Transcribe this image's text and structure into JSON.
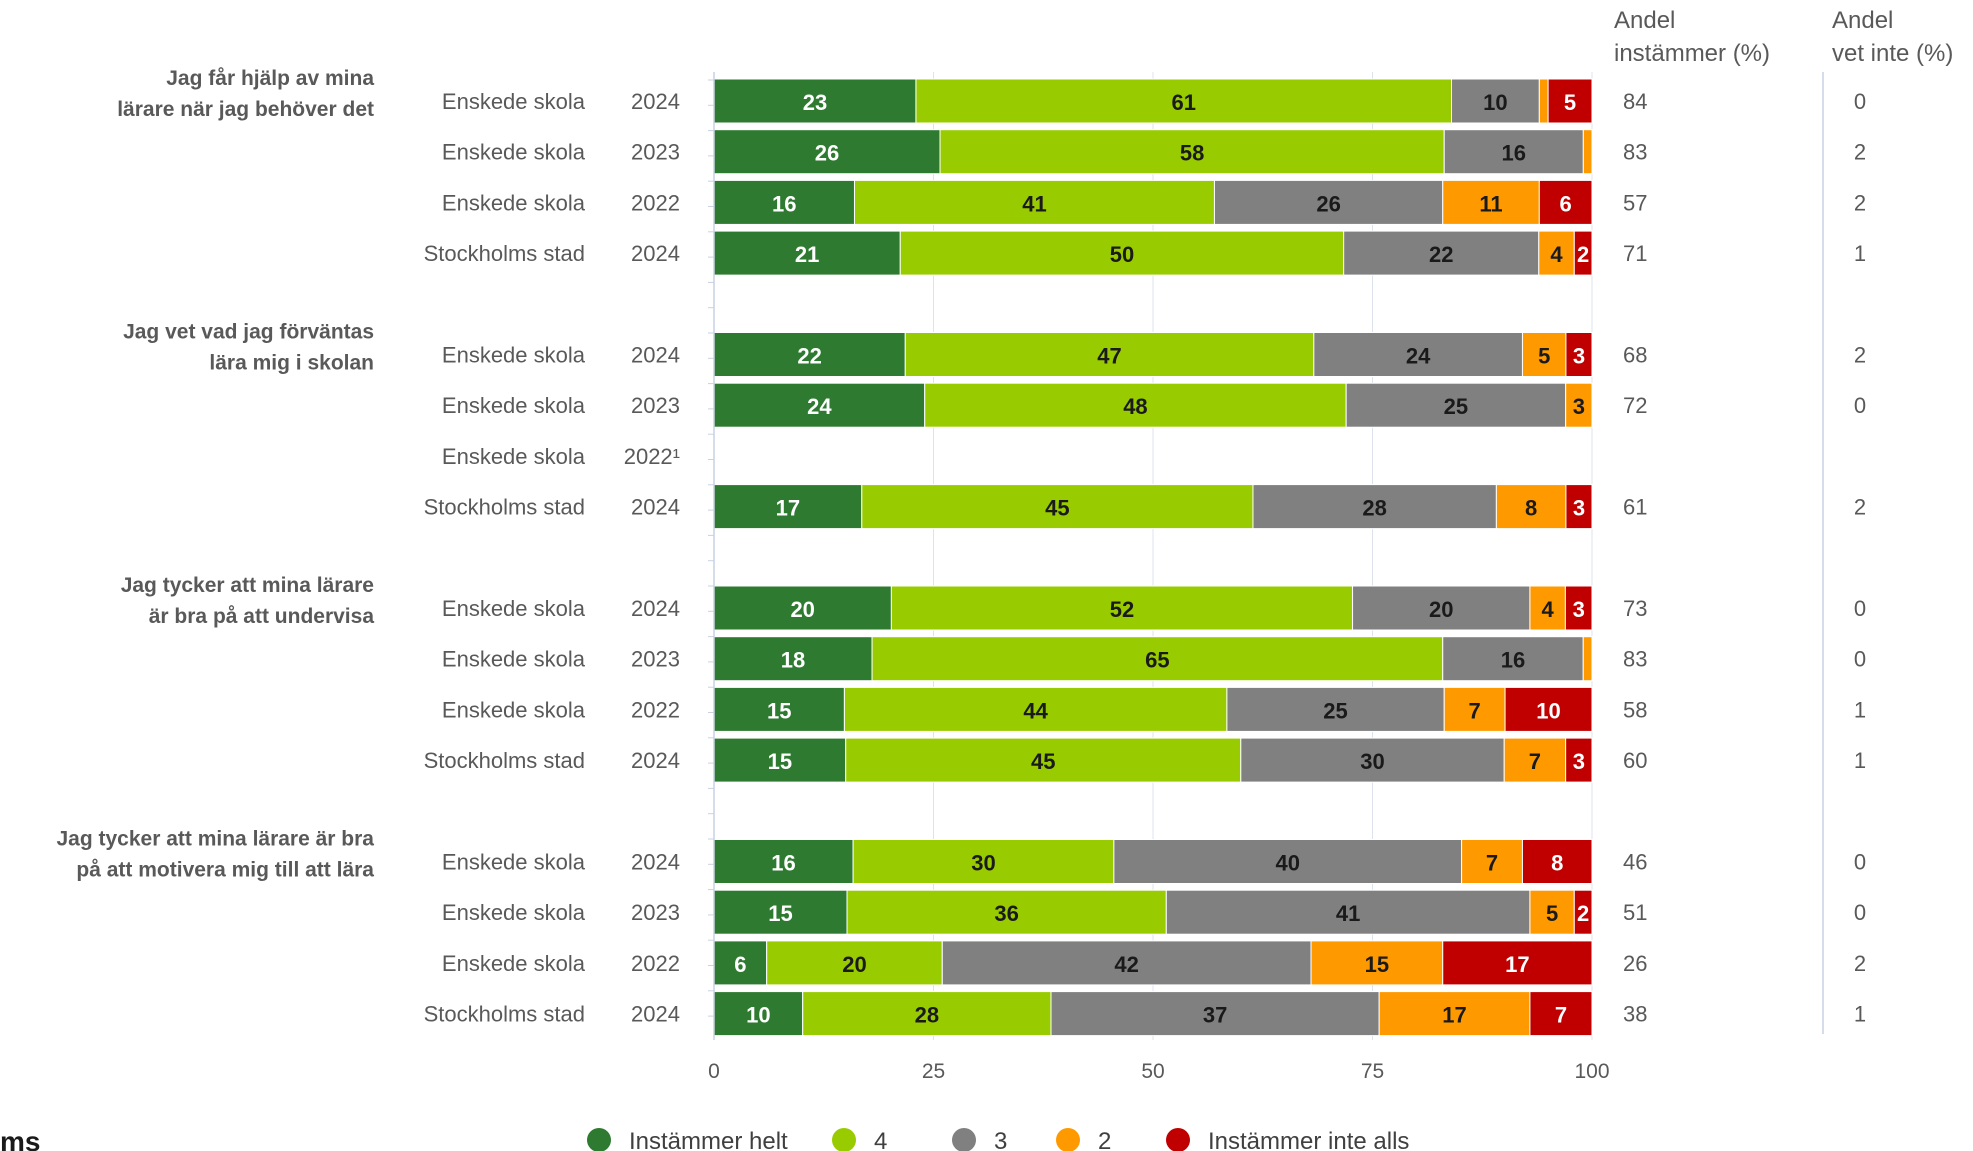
{
  "chart_data": {
    "type": "bar",
    "stacked": true,
    "orientation": "horizontal",
    "xlim": [
      0,
      100
    ],
    "xticks": [
      0,
      25,
      50,
      75,
      100
    ],
    "grid": true,
    "legend_position": "bottom",
    "series": [
      {
        "name": "Instämmer helt",
        "color": "#2d7a30",
        "text_color": "#ffffff"
      },
      {
        "name": "4",
        "color": "#99cc00",
        "text_color": "#1a1a1a"
      },
      {
        "name": "3",
        "color": "#808080",
        "text_color": "#1a1a1a"
      },
      {
        "name": "2",
        "color": "#ff9900",
        "text_color": "#1a1a1a"
      },
      {
        "name": "Instämmer inte alls",
        "color": "#c00000",
        "text_color": "#ffffff"
      }
    ],
    "column_headers": {
      "andel_instammer": [
        "Andel",
        "instämmer (%)"
      ],
      "andel_vet_inte": [
        "Andel",
        "vet inte (%)"
      ]
    },
    "groups": [
      {
        "question": [
          "Jag får hjälp av mina",
          "lärare när jag behöver det"
        ],
        "rows": [
          {
            "unit": "Enskede skola",
            "year": "2024",
            "values": [
              23,
              61,
              10,
              1,
              5
            ],
            "andel_instammer": "84",
            "andel_vet_inte": "0"
          },
          {
            "unit": "Enskede skola",
            "year": "2023",
            "values": [
              26,
              58,
              16,
              1,
              0
            ],
            "andel_instammer": "83",
            "andel_vet_inte": "2"
          },
          {
            "unit": "Enskede skola",
            "year": "2022",
            "values": [
              16,
              41,
              26,
              11,
              6
            ],
            "andel_instammer": "57",
            "andel_vet_inte": "2"
          },
          {
            "unit": "Stockholms stad",
            "year": "2024",
            "values": [
              21,
              50,
              22,
              4,
              2
            ],
            "andel_instammer": "71",
            "andel_vet_inte": "1"
          }
        ]
      },
      {
        "question": [
          "Jag vet vad jag förväntas",
          "lära mig i skolan"
        ],
        "rows": [
          {
            "unit": "Enskede skola",
            "year": "2024",
            "values": [
              22,
              47,
              24,
              5,
              3
            ],
            "andel_instammer": "68",
            "andel_vet_inte": "2"
          },
          {
            "unit": "Enskede skola",
            "year": "2023",
            "values": [
              24,
              48,
              25,
              3,
              0
            ],
            "andel_instammer": "72",
            "andel_vet_inte": "0"
          },
          {
            "unit": "Enskede skola",
            "year": "2022¹",
            "values": null,
            "andel_instammer": "",
            "andel_vet_inte": ""
          },
          {
            "unit": "Stockholms stad",
            "year": "2024",
            "values": [
              17,
              45,
              28,
              8,
              3
            ],
            "andel_instammer": "61",
            "andel_vet_inte": "2"
          }
        ]
      },
      {
        "question": [
          "Jag tycker att mina lärare",
          "är bra på att undervisa"
        ],
        "rows": [
          {
            "unit": "Enskede skola",
            "year": "2024",
            "values": [
              20,
              52,
              20,
              4,
              3
            ],
            "andel_instammer": "73",
            "andel_vet_inte": "0"
          },
          {
            "unit": "Enskede skola",
            "year": "2023",
            "values": [
              18,
              65,
              16,
              1,
              0
            ],
            "andel_instammer": "83",
            "andel_vet_inte": "0"
          },
          {
            "unit": "Enskede skola",
            "year": "2022",
            "values": [
              15,
              44,
              25,
              7,
              10
            ],
            "andel_instammer": "58",
            "andel_vet_inte": "1"
          },
          {
            "unit": "Stockholms stad",
            "year": "2024",
            "values": [
              15,
              45,
              30,
              7,
              3
            ],
            "andel_instammer": "60",
            "andel_vet_inte": "1"
          }
        ]
      },
      {
        "question": [
          "Jag tycker att mina lärare är bra",
          "på att motivera mig till att lära"
        ],
        "rows": [
          {
            "unit": "Enskede skola",
            "year": "2024",
            "values": [
              16,
              30,
              40,
              7,
              8
            ],
            "andel_instammer": "46",
            "andel_vet_inte": "0"
          },
          {
            "unit": "Enskede skola",
            "year": "2023",
            "values": [
              15,
              36,
              41,
              5,
              2
            ],
            "andel_instammer": "51",
            "andel_vet_inte": "0"
          },
          {
            "unit": "Enskede skola",
            "year": "2022",
            "values": [
              6,
              20,
              42,
              15,
              17
            ],
            "andel_instammer": "26",
            "andel_vet_inte": "2"
          },
          {
            "unit": "Stockholms stad",
            "year": "2024",
            "values": [
              10,
              28,
              37,
              17,
              7
            ],
            "andel_instammer": "38",
            "andel_vet_inte": "1"
          }
        ]
      }
    ]
  },
  "corner_text": "ms"
}
